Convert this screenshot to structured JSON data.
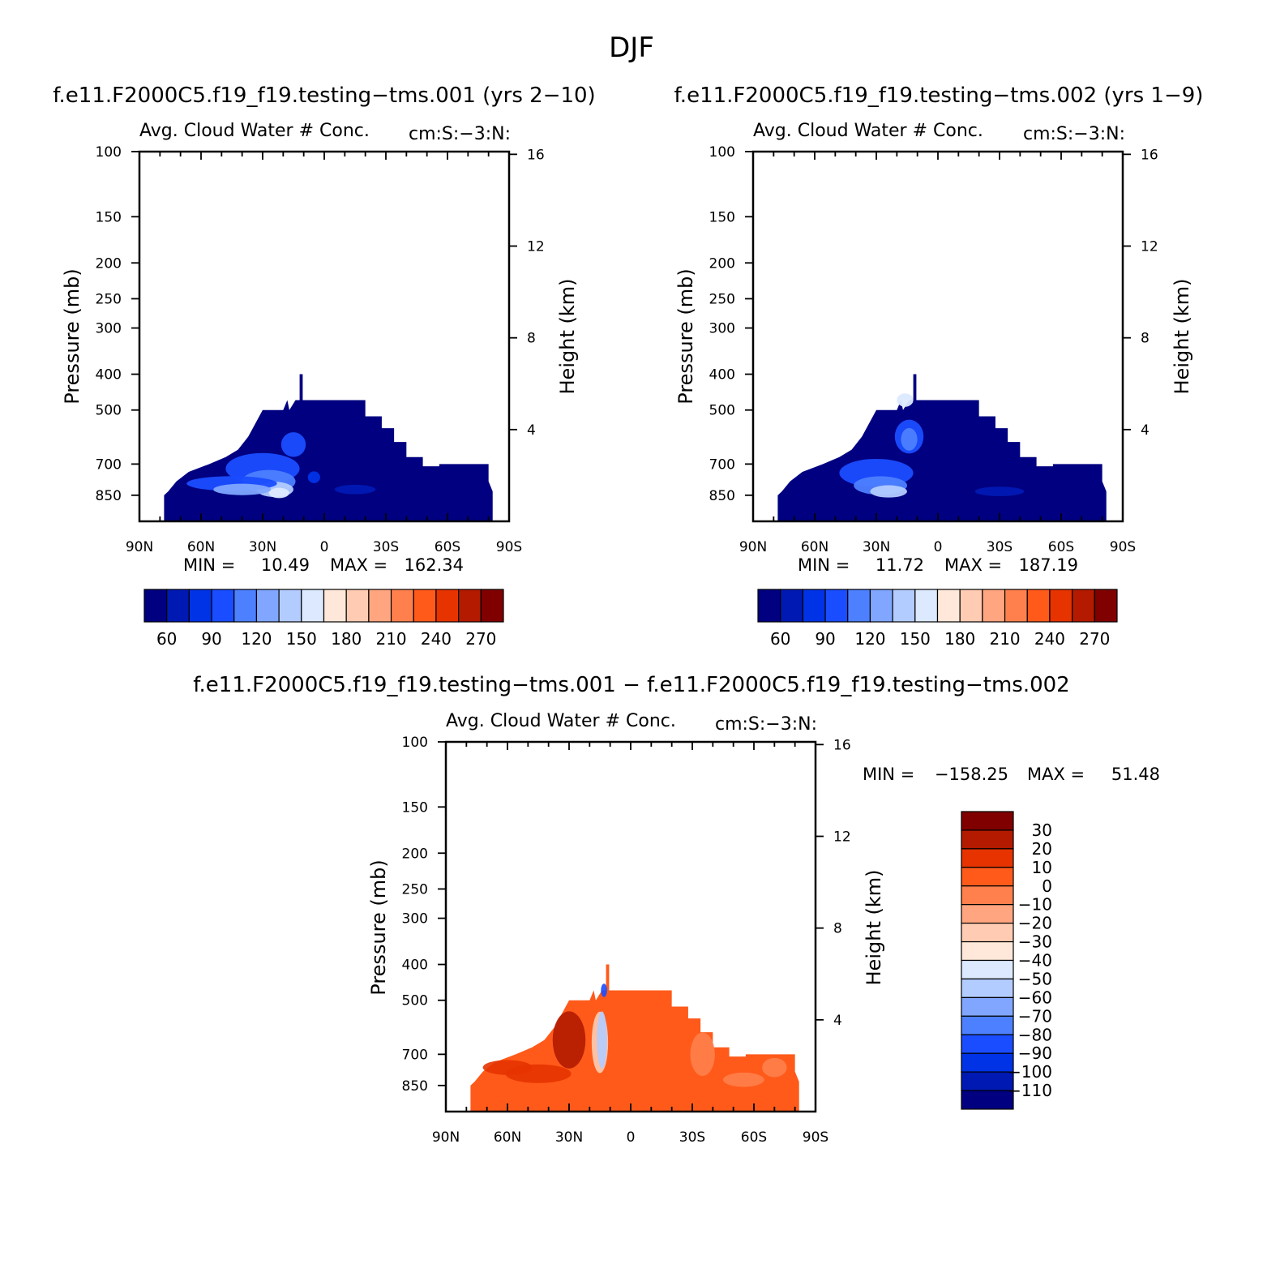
{
  "figure_title": "DJF",
  "chart_data": [
    {
      "type": "heatmap",
      "id": "p1",
      "case_title": "f.e11.F2000C5.f19_f19.testing−tms.001 (yrs 2−10)",
      "title": "Avg. Cloud Water # Conc.",
      "units": "cm:S:−3:N:",
      "ylabel": "Pressure (mb)",
      "ylabel_right": "Height (km)",
      "x_ticks": [
        "90N",
        "60N",
        "30N",
        "0",
        "30S",
        "60S",
        "90S"
      ],
      "y_ticks": [
        "100",
        "150",
        "200",
        "250",
        "300",
        "400",
        "500",
        "700",
        "850"
      ],
      "y_ticks_right": [
        "16",
        "12",
        "8",
        "4"
      ],
      "stats": {
        "min_label": "MIN =",
        "min": "10.49",
        "max_label": "MAX =",
        "max": "162.34"
      },
      "colorbar": {
        "orientation": "horizontal",
        "colors": [
          "#000080",
          "#0019b3",
          "#0033e6",
          "#1a4dff",
          "#4d80ff",
          "#80a6ff",
          "#b3ccff",
          "#dce9ff",
          "#ffe8d9",
          "#ffccb3",
          "#ffa680",
          "#ff804d",
          "#ff5a1a",
          "#e63300",
          "#b31a00",
          "#800000"
        ],
        "labels": [
          "60",
          "90",
          "120",
          "150",
          "180",
          "210",
          "240",
          "270"
        ]
      }
    },
    {
      "type": "heatmap",
      "id": "p2",
      "case_title": "f.e11.F2000C5.f19_f19.testing−tms.002 (yrs 1−9)",
      "title": "Avg. Cloud Water # Conc.",
      "units": "cm:S:−3:N:",
      "ylabel": "Pressure (mb)",
      "ylabel_right": "Height (km)",
      "x_ticks": [
        "90N",
        "60N",
        "30N",
        "0",
        "30S",
        "60S",
        "90S"
      ],
      "y_ticks": [
        "100",
        "150",
        "200",
        "250",
        "300",
        "400",
        "500",
        "700",
        "850"
      ],
      "y_ticks_right": [
        "16",
        "12",
        "8",
        "4"
      ],
      "stats": {
        "min_label": "MIN =",
        "min": "11.72",
        "max_label": "MAX =",
        "max": "187.19"
      },
      "colorbar": {
        "orientation": "horizontal",
        "colors": [
          "#000080",
          "#0019b3",
          "#0033e6",
          "#1a4dff",
          "#4d80ff",
          "#80a6ff",
          "#b3ccff",
          "#dce9ff",
          "#ffe8d9",
          "#ffccb3",
          "#ffa680",
          "#ff804d",
          "#ff5a1a",
          "#e63300",
          "#b31a00",
          "#800000"
        ],
        "labels": [
          "60",
          "90",
          "120",
          "150",
          "180",
          "210",
          "240",
          "270"
        ]
      }
    },
    {
      "type": "heatmap",
      "id": "p3",
      "case_title": "f.e11.F2000C5.f19_f19.testing−tms.001 − f.e11.F2000C5.f19_f19.testing−tms.002",
      "title": "Avg. Cloud Water # Conc.",
      "units": "cm:S:−3:N:",
      "ylabel": "Pressure (mb)",
      "ylabel_right": "Height (km)",
      "x_ticks": [
        "90N",
        "60N",
        "30N",
        "0",
        "30S",
        "60S",
        "90S"
      ],
      "y_ticks": [
        "100",
        "150",
        "200",
        "250",
        "300",
        "400",
        "500",
        "700",
        "850"
      ],
      "y_ticks_right": [
        "16",
        "12",
        "8",
        "4"
      ],
      "stats": {
        "min_label": "MIN =",
        "min": "−158.25",
        "max_label": "MAX =",
        "max": "51.48"
      },
      "colorbar": {
        "orientation": "vertical",
        "colors": [
          "#800000",
          "#b31a00",
          "#e63300",
          "#ff5a1a",
          "#ff804d",
          "#ffa680",
          "#ffccb3",
          "#ffe8d9",
          "#dce9ff",
          "#b3ccff",
          "#80a6ff",
          "#4d80ff",
          "#1a4dff",
          "#0033e6",
          "#0019b3",
          "#000080"
        ],
        "labels": [
          "30",
          "20",
          "10",
          "0",
          "−10",
          "−20",
          "−30",
          "−40",
          "−50",
          "−60",
          "−70",
          "−80",
          "−90",
          "−100",
          "−110"
        ]
      }
    }
  ]
}
